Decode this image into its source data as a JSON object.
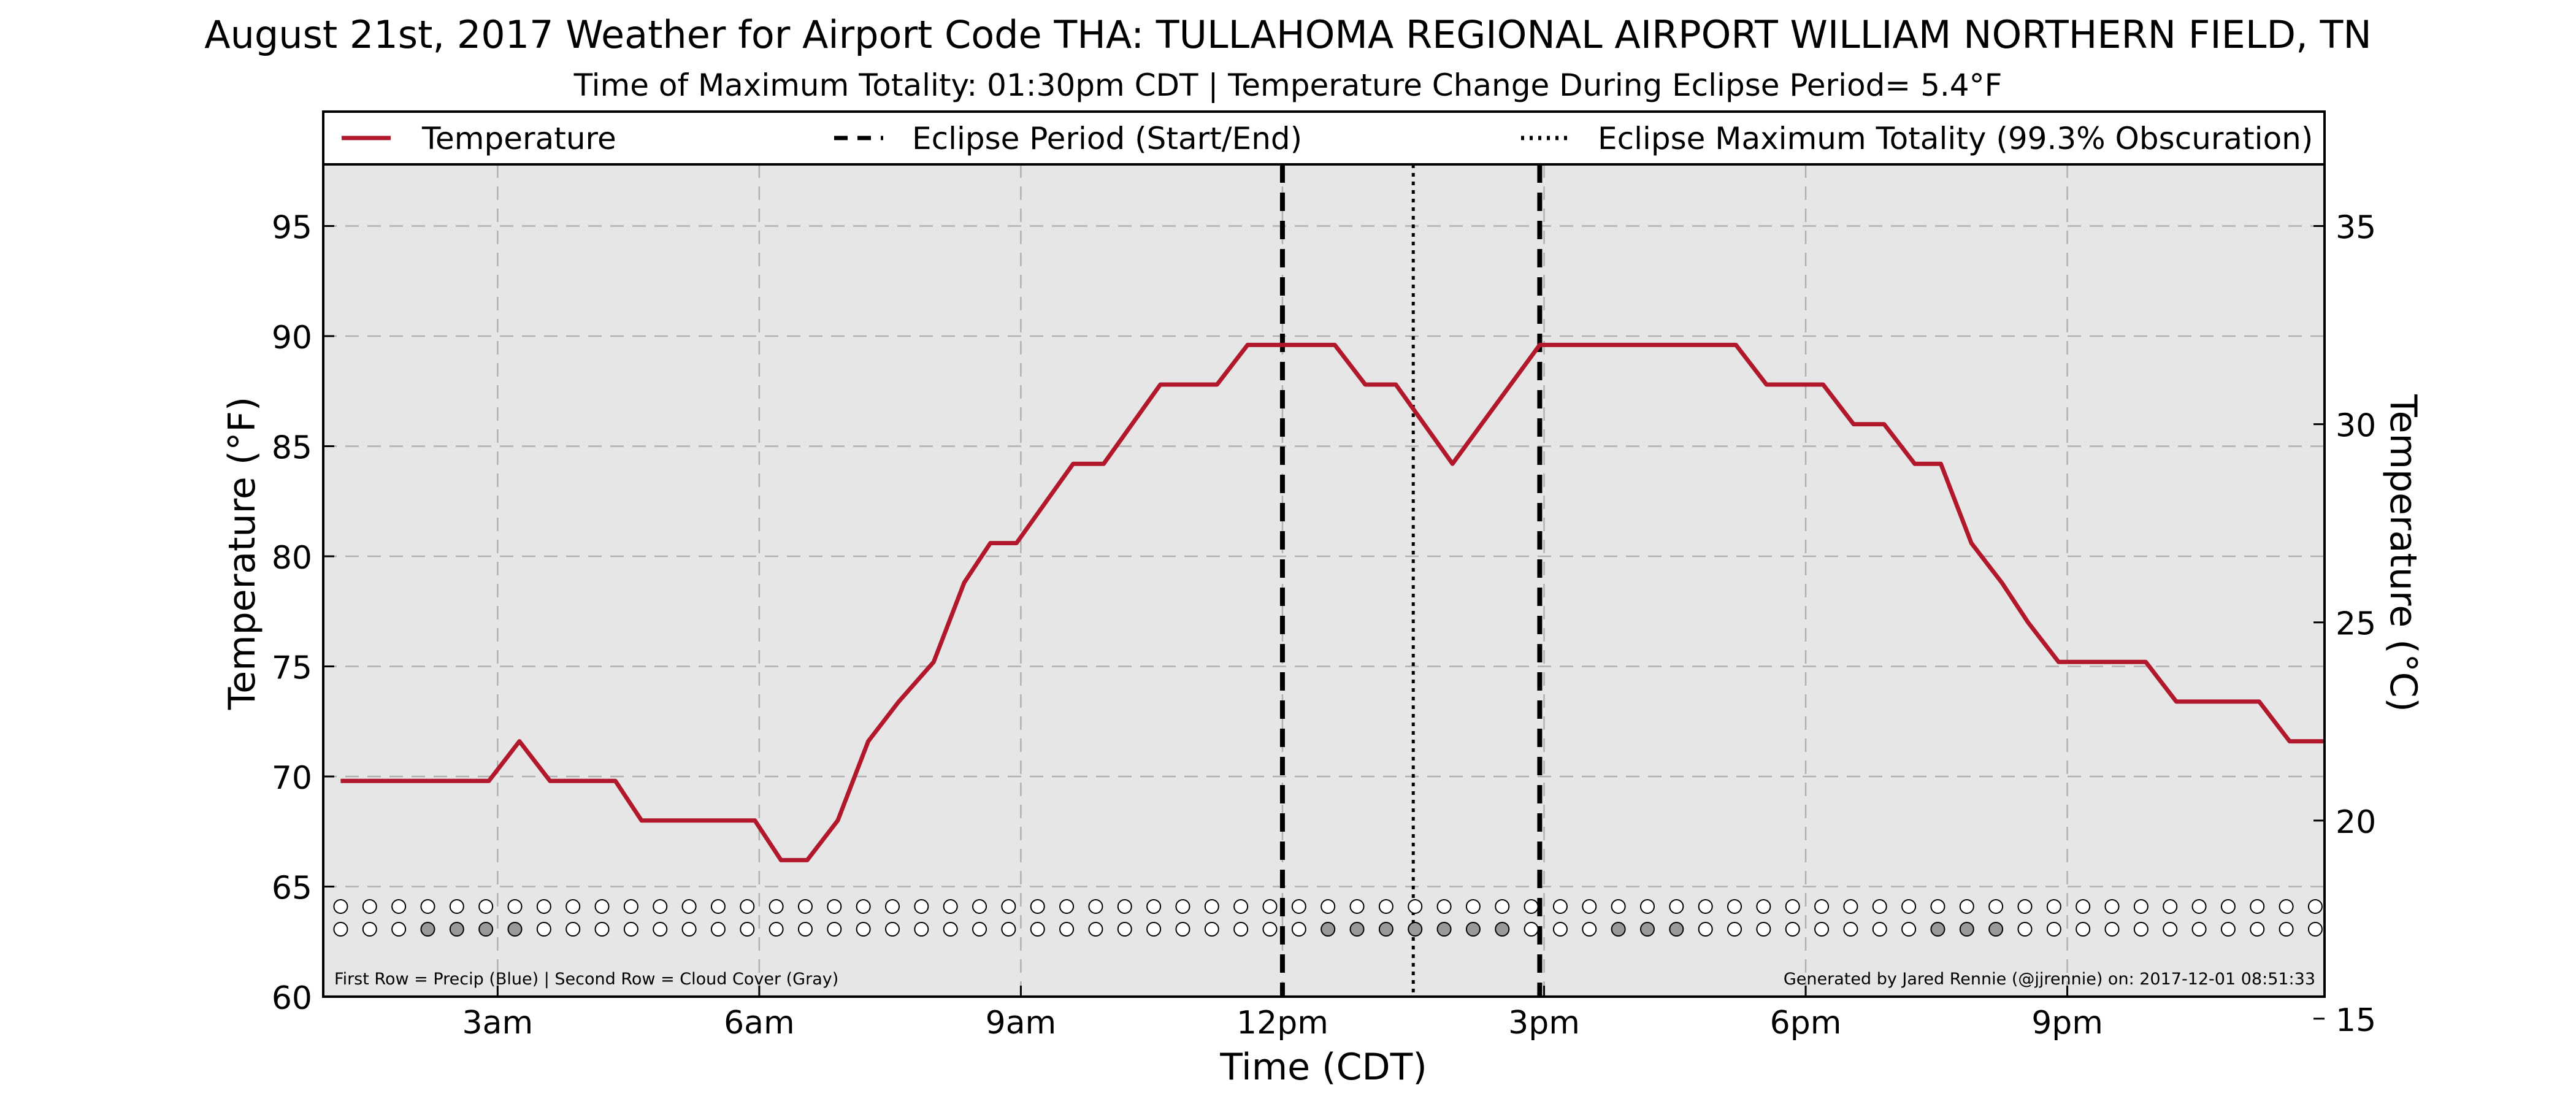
{
  "chart_data": {
    "type": "line",
    "title": "August 21st, 2017 Weather for Airport Code THA: TULLAHOMA REGIONAL AIRPORT WILLIAM NORTHERN FIELD, TN",
    "subtitle": "Time of Maximum Totality: 01:30pm CDT | Temperature Change During Eclipse Period= 5.4°F",
    "xlabel": "Time (CDT)",
    "ylabel": "Temperature (°F)",
    "ylabel_right": "Temperature (°C)",
    "ylim": [
      60,
      97.8
    ],
    "ylim_right": [
      15.556,
      36.556
    ],
    "xlim_hours": [
      1.0,
      23.95
    ],
    "x_ticks": [
      {
        "hour": 3,
        "label": "3am"
      },
      {
        "hour": 6,
        "label": "6am"
      },
      {
        "hour": 9,
        "label": "9am"
      },
      {
        "hour": 12,
        "label": "12pm"
      },
      {
        "hour": 15,
        "label": "3pm"
      },
      {
        "hour": 18,
        "label": "6pm"
      },
      {
        "hour": 21,
        "label": "9pm"
      }
    ],
    "y_ticks_left": [
      60,
      65,
      70,
      75,
      80,
      85,
      90,
      95
    ],
    "y_ticks_right": [
      15,
      20,
      25,
      30,
      35
    ],
    "grid": true,
    "colors": {
      "temperature": "#b2182b",
      "plot_background": "#e6e6e6",
      "grid": "#b0b0b0",
      "cloud_cover_filled": "#999999",
      "empty_marker": "#ffffff"
    },
    "legend": {
      "placement": "top",
      "items": [
        {
          "label": "Temperature",
          "style": "solid",
          "color": "#b2182b"
        },
        {
          "label": "Eclipse Period (Start/End)",
          "style": "dashed",
          "color": "#000000"
        },
        {
          "label": "Eclipse Maximum Totality (99.3% Obscuration)",
          "style": "dotted",
          "color": "#000000"
        }
      ]
    },
    "series": [
      {
        "name": "Temperature",
        "x_hours": [
          1.2,
          2.2,
          2.9,
          3.25,
          3.6,
          4.0,
          4.35,
          4.65,
          5.6,
          5.95,
          6.25,
          6.55,
          6.9,
          7.25,
          7.6,
          8.0,
          8.35,
          8.65,
          8.95,
          9.6,
          9.95,
          10.6,
          11.25,
          11.6,
          11.95,
          12.6,
          12.95,
          13.3,
          13.95,
          14.95,
          15.55,
          16.55,
          17.2,
          17.55,
          18.2,
          18.55,
          18.9,
          19.25,
          19.55,
          19.9,
          20.25,
          20.55,
          20.9,
          21.55,
          21.9,
          22.25,
          22.55,
          23.2,
          23.55,
          23.95
        ],
        "values_f": [
          69.8,
          69.8,
          69.8,
          71.6,
          69.8,
          69.8,
          69.8,
          68.0,
          68.0,
          68.0,
          66.2,
          66.2,
          68.0,
          71.6,
          73.4,
          75.2,
          78.8,
          80.6,
          80.6,
          84.2,
          84.2,
          87.8,
          87.8,
          89.6,
          89.6,
          89.6,
          87.8,
          87.8,
          84.2,
          89.6,
          89.6,
          89.6,
          89.6,
          87.8,
          87.8,
          86.0,
          86.0,
          84.2,
          84.2,
          80.6,
          78.8,
          77.0,
          75.2,
          75.2,
          75.2,
          73.4,
          73.4,
          73.4,
          71.6,
          71.6
        ]
      }
    ],
    "eclipse": {
      "start_hour": 12.0,
      "max_totality_hour": 13.5,
      "end_hour": 14.95
    },
    "observation_markers": {
      "start_hour": 1.2,
      "step_hours": 0.333,
      "count": 69,
      "row1_precip_levels": [],
      "row2_cloud_cover_filled_indices": [
        3,
        4,
        5,
        6,
        34,
        35,
        36,
        37,
        38,
        39,
        40,
        44,
        45,
        46,
        55,
        56,
        57
      ]
    },
    "annotations": {
      "footnote_left": "First Row = Precip (Blue) | Second Row = Cloud Cover (Gray)",
      "footnote_right": "Generated by Jared Rennie (@jjrennie) on: 2017-12-01 08:51:33"
    }
  }
}
